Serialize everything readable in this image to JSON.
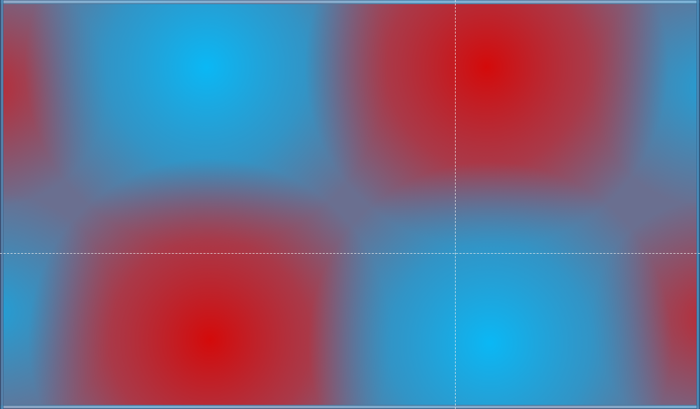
{
  "canvas": {
    "content": "gradient-image",
    "colors": {
      "red": "#d40a0a",
      "cyan": "#0ab8f5",
      "mid": "#6a6f90"
    }
  },
  "guides": {
    "style": "dashed",
    "color": "#ebebeb"
  }
}
